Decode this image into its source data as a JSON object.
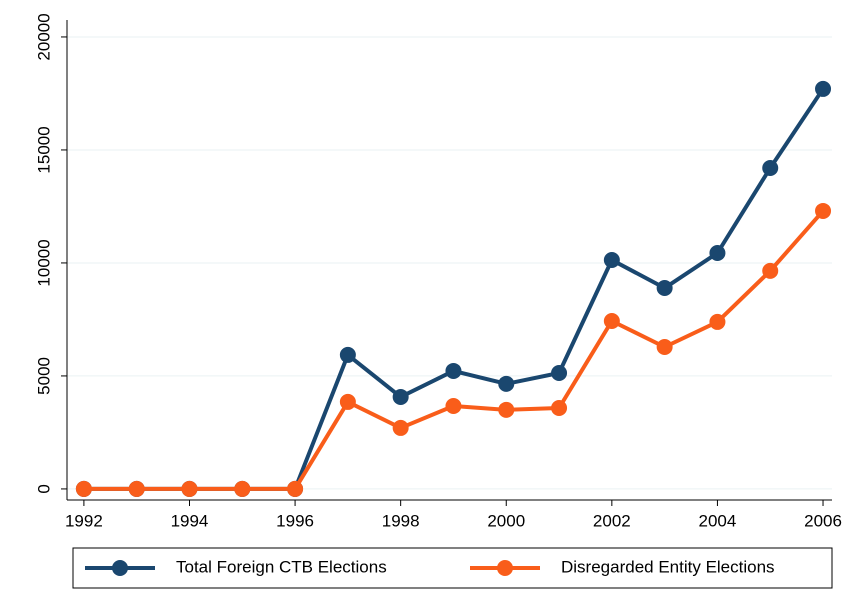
{
  "chart_data": {
    "type": "line",
    "x": [
      1992,
      1993,
      1994,
      1995,
      1996,
      1997,
      1998,
      1999,
      2000,
      2001,
      2002,
      2003,
      2004,
      2005,
      2006
    ],
    "series": [
      {
        "name": "Total Foreign CTB Elections",
        "color": "#1a476f",
        "values": [
          0,
          0,
          0,
          0,
          0,
          5930,
          4070,
          5220,
          4650,
          5130,
          10130,
          8890,
          10440,
          14200,
          17700
        ]
      },
      {
        "name": "Disregarded Entity Elections",
        "color": "#f95d1a",
        "values": [
          0,
          0,
          0,
          0,
          0,
          3850,
          2700,
          3670,
          3500,
          3580,
          7430,
          6280,
          7390,
          9650,
          12300
        ]
      }
    ],
    "xlim": [
      1991.68,
      2006.17
    ],
    "xticks": [
      1992,
      1994,
      1996,
      1998,
      2000,
      2002,
      2004,
      2006
    ],
    "ylim": [
      -490,
      20750
    ],
    "yticks": [
      0,
      5000,
      10000,
      15000,
      20000
    ],
    "grid": true,
    "legend": "bottom"
  }
}
